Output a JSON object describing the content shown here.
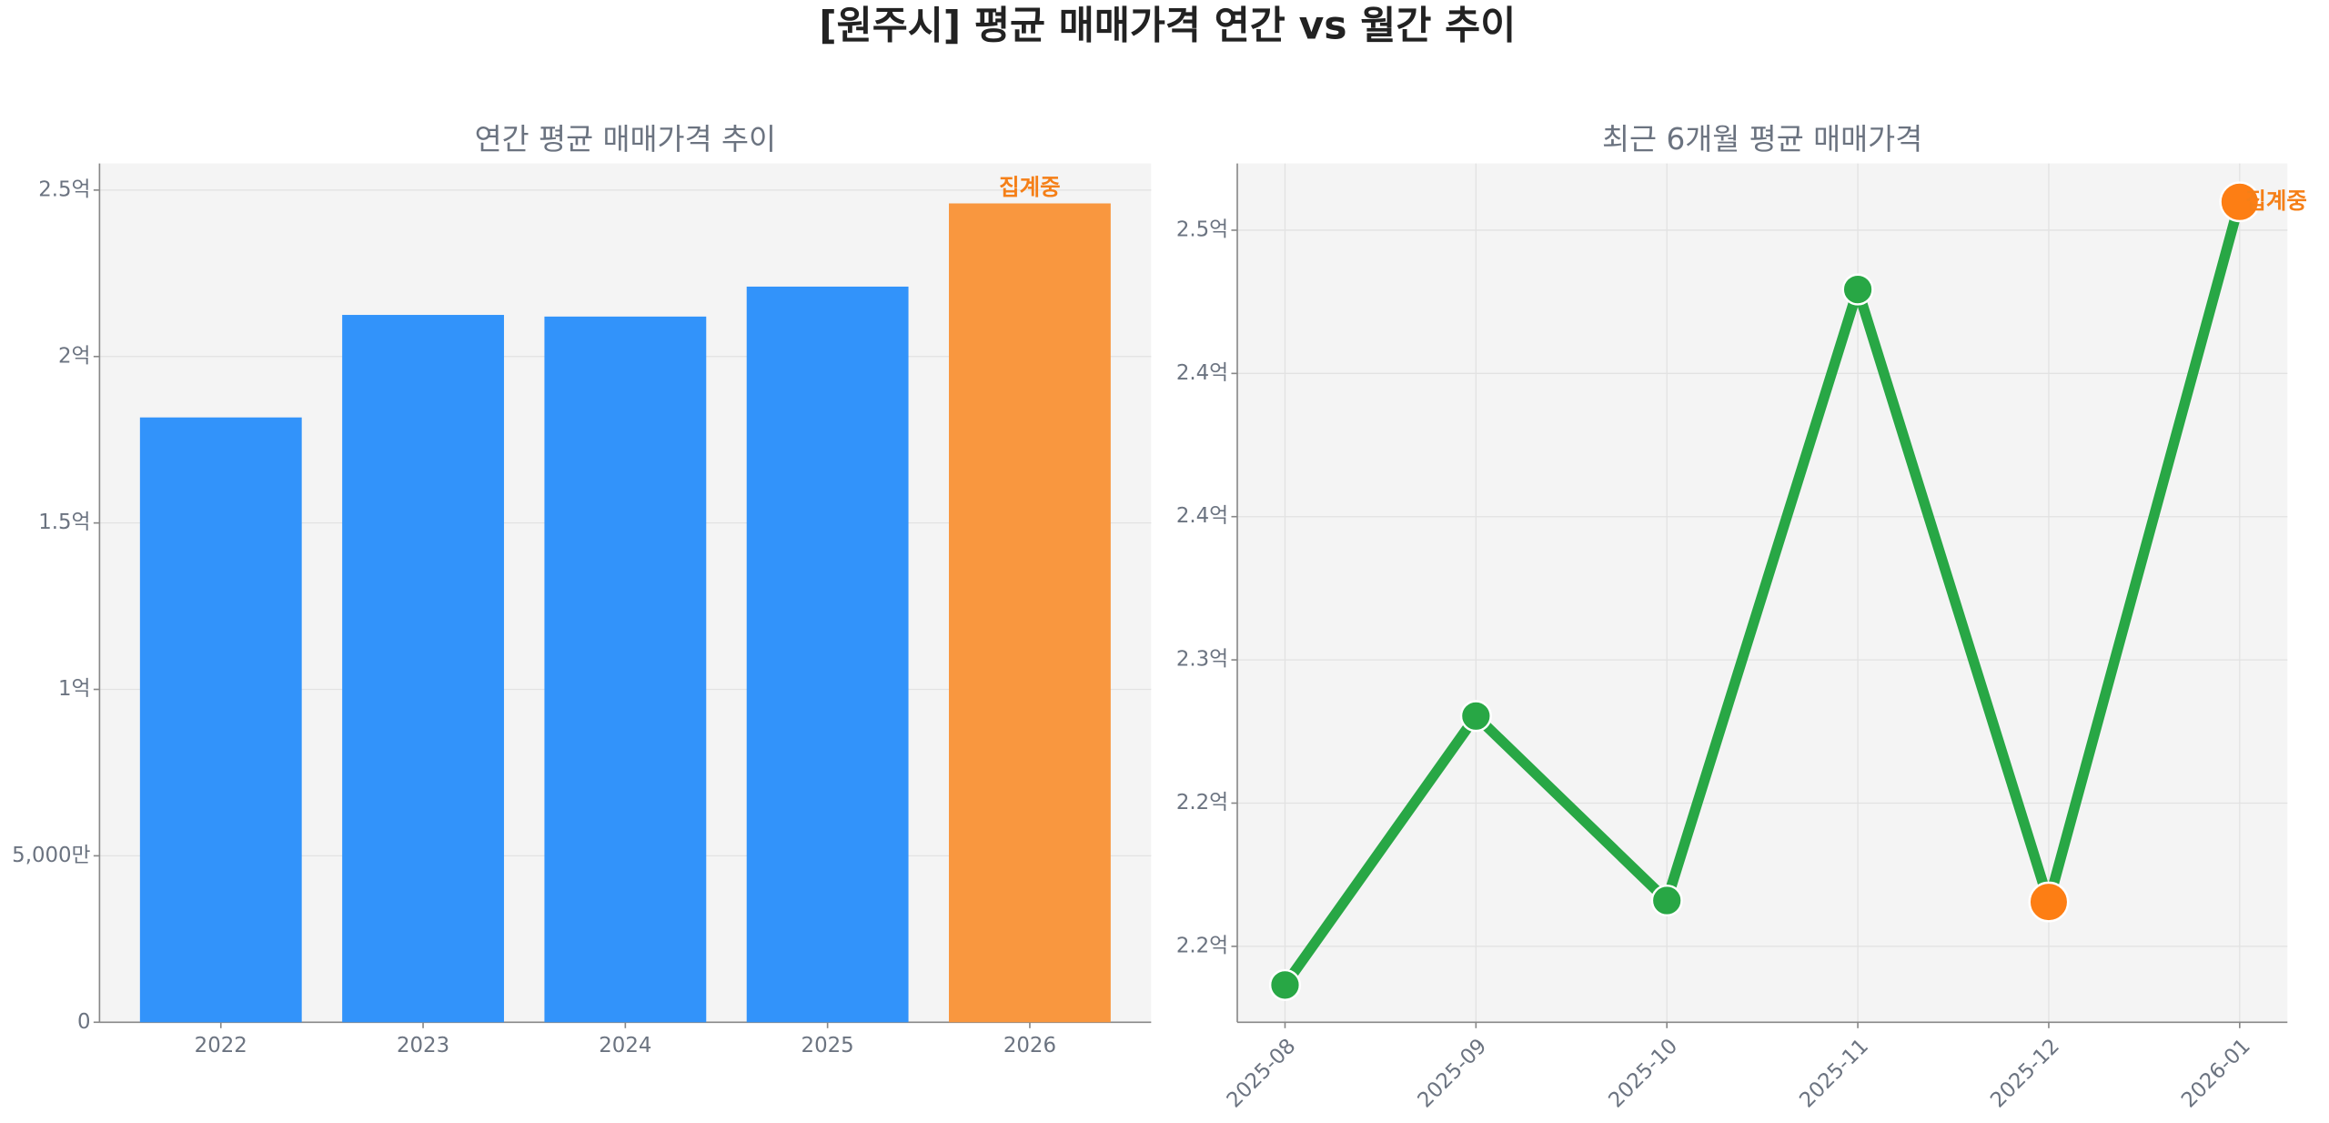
{
  "title": "[원주시] 평균 매매가격 연간 vs 월간 추이",
  "chart_data": [
    {
      "type": "bar",
      "title": "연간 평균 매매가격 추이",
      "categories": [
        "2022",
        "2023",
        "2024",
        "2025",
        "2026"
      ],
      "values": [
        1.817,
        2.125,
        2.12,
        2.21,
        2.46
      ],
      "colors": [
        "#3293fa",
        "#3293fa",
        "#3293fa",
        "#3293fa",
        "#f9973f"
      ],
      "annotation": "집계중",
      "annotation_color": "#f57f17",
      "ylim": [
        0,
        2.58
      ],
      "yticks": [
        0,
        {
          "value": 0.5,
          "label": "5,000만"
        },
        {
          "value": 1,
          "label": "1억"
        },
        {
          "value": 1.5,
          "label": "1.5억"
        },
        {
          "value": 2,
          "label": "2억"
        },
        {
          "value": 2.5,
          "label": "2.5억"
        }
      ],
      "grid": true
    },
    {
      "type": "line",
      "title": "최근 6개월 평균 매매가격",
      "categories": [
        "2025-08",
        "2025-09",
        "2025-10",
        "2025-11",
        "2025-12",
        "2026-01"
      ],
      "series": [
        {
          "color": "#28a745",
          "values": [
            2.1865,
            2.2804,
            2.216,
            2.4293,
            2.2155,
            2.4599
          ],
          "point_colors": [
            "#28a745",
            "#28a745",
            "#28a745",
            "#28a745",
            "#fd7e14",
            "#fd7e14"
          ]
        }
      ],
      "annotation": "집계중",
      "annotation_color": "#f57f17",
      "ylim": [
        2.1735,
        2.4733
      ],
      "yticks": [
        {
          "value": 2.2,
          "label": "2.2억"
        },
        {
          "value": 2.25,
          "label": "2.2억"
        },
        {
          "value": 2.3,
          "label": "2.3억"
        },
        {
          "value": 2.35,
          "label": "2.4억"
        },
        {
          "value": 2.4,
          "label": "2.4억"
        },
        {
          "value": 2.45,
          "label": "2.5억"
        }
      ],
      "grid": true
    }
  ]
}
